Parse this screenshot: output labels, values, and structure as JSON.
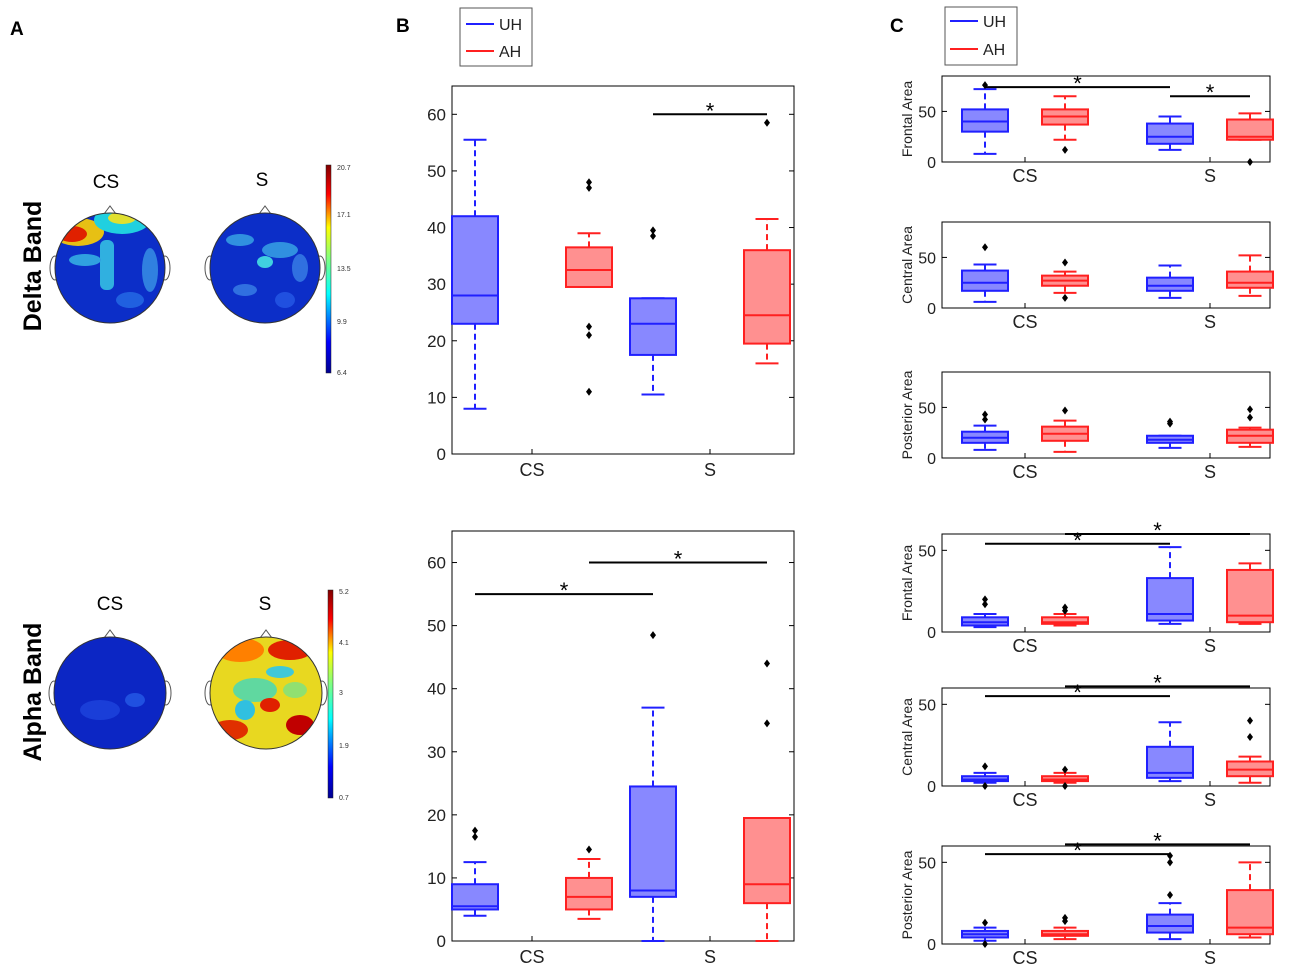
{
  "panels": {
    "a": "A",
    "b": "B",
    "c": "C"
  },
  "bands": {
    "delta": "Delta Band",
    "alpha": "Alpha Band"
  },
  "topo_labels": {
    "cs": "CS",
    "s": "S"
  },
  "colorbars": {
    "delta": [
      "20.7",
      "17.1",
      "13.5",
      "9.9",
      "6.4"
    ],
    "alpha": [
      "5.2",
      "4.1",
      "3",
      "1.9",
      "0.7"
    ]
  },
  "legend": {
    "uh": "UH",
    "ah": "AH"
  },
  "colors": {
    "uh": "#2020ff",
    "uh_fill": "#8888ff",
    "ah": "#ff2020",
    "ah_fill": "#ff9090"
  },
  "significance": "*",
  "chart_data": [
    {
      "id": "delta-overall",
      "type": "boxplot",
      "title": "Delta Band",
      "ylabel": "",
      "categories": [
        "CS",
        "S"
      ],
      "ylim": [
        0,
        65
      ],
      "yticks": [
        0,
        10,
        20,
        30,
        40,
        50,
        60
      ],
      "series": [
        {
          "name": "UH",
          "boxes": [
            {
              "whislo": 8,
              "q1": 23,
              "med": 28,
              "q3": 42,
              "whishi": 55.5,
              "outliers": []
            },
            {
              "whislo": 10.5,
              "q1": 17.5,
              "med": 23,
              "q3": 27.5,
              "whishi": 27.5,
              "outliers": [
                38.5,
                39.5
              ]
            }
          ]
        },
        {
          "name": "AH",
          "boxes": [
            {
              "whislo": 29.5,
              "q1": 29.5,
              "med": 32.5,
              "q3": 36.5,
              "whishi": 39,
              "outliers": [
                11,
                21,
                22.5,
                47,
                48
              ]
            },
            {
              "whislo": 16,
              "q1": 19.5,
              "med": 24.5,
              "q3": 36,
              "whishi": 41.5,
              "outliers": [
                58.5
              ]
            }
          ]
        }
      ],
      "sig": [
        {
          "from": "S-UH",
          "to": "S-AH",
          "y": 60
        }
      ]
    },
    {
      "id": "alpha-overall",
      "type": "boxplot",
      "title": "Alpha Band",
      "ylabel": "",
      "categories": [
        "CS",
        "S"
      ],
      "ylim": [
        0,
        65
      ],
      "yticks": [
        0,
        10,
        20,
        30,
        40,
        50,
        60
      ],
      "series": [
        {
          "name": "UH",
          "boxes": [
            {
              "whislo": 4,
              "q1": 5,
              "med": 5.5,
              "q3": 9,
              "whishi": 12.5,
              "outliers": [
                16.5,
                17.5
              ]
            },
            {
              "whislo": 0,
              "q1": 7,
              "med": 8,
              "q3": 24.5,
              "whishi": 37,
              "outliers": [
                48.5
              ]
            }
          ]
        },
        {
          "name": "AH",
          "boxes": [
            {
              "whislo": 3.5,
              "q1": 5,
              "med": 7,
              "q3": 10,
              "whishi": 13,
              "outliers": [
                14.5
              ]
            },
            {
              "whislo": 0,
              "q1": 6,
              "med": 9,
              "q3": 19.5,
              "whishi": 19.5,
              "outliers": [
                34.5,
                44
              ]
            }
          ]
        }
      ],
      "sig": [
        {
          "from": "CS-UH",
          "to": "S-UH",
          "y": 55
        },
        {
          "from": "CS-AH",
          "to": "S-AH",
          "y": 60
        }
      ]
    },
    {
      "id": "delta-frontal",
      "type": "boxplot",
      "band": "Delta Band",
      "ylabel": "Frontal Area",
      "categories": [
        "CS",
        "S"
      ],
      "ylim": [
        0,
        85
      ],
      "yticks": [
        0,
        50
      ],
      "series": [
        {
          "name": "UH",
          "boxes": [
            {
              "whislo": 8,
              "q1": 30,
              "med": 40,
              "q3": 52,
              "whishi": 72,
              "outliers": [
                76
              ]
            },
            {
              "whislo": 12,
              "q1": 18,
              "med": 25,
              "q3": 38,
              "whishi": 45,
              "outliers": []
            }
          ]
        },
        {
          "name": "AH",
          "boxes": [
            {
              "whislo": 22,
              "q1": 37,
              "med": 45,
              "q3": 52,
              "whishi": 65,
              "outliers": [
                12
              ]
            },
            {
              "whislo": 22,
              "q1": 22,
              "med": 25,
              "q3": 42,
              "whishi": 48,
              "outliers": [
                0
              ]
            }
          ]
        }
      ],
      "sig": [
        {
          "from": "CS-UH",
          "to": "S-UH",
          "y": 74
        },
        {
          "from": "S-UH",
          "to": "S-AH",
          "y": 65
        }
      ]
    },
    {
      "id": "delta-central",
      "type": "boxplot",
      "band": "Delta Band",
      "ylabel": "Central Area",
      "categories": [
        "CS",
        "S"
      ],
      "ylim": [
        0,
        85
      ],
      "yticks": [
        0,
        50
      ],
      "series": [
        {
          "name": "UH",
          "boxes": [
            {
              "whislo": 6,
              "q1": 17,
              "med": 25,
              "q3": 37,
              "whishi": 43,
              "outliers": [
                60
              ]
            },
            {
              "whislo": 10,
              "q1": 17,
              "med": 22,
              "q3": 30,
              "whishi": 42,
              "outliers": []
            }
          ]
        },
        {
          "name": "AH",
          "boxes": [
            {
              "whislo": 15,
              "q1": 22,
              "med": 27,
              "q3": 32,
              "whishi": 36,
              "outliers": [
                10,
                45
              ]
            },
            {
              "whislo": 12,
              "q1": 20,
              "med": 25,
              "q3": 36,
              "whishi": 52,
              "outliers": []
            }
          ]
        }
      ],
      "sig": []
    },
    {
      "id": "delta-posterior",
      "type": "boxplot",
      "band": "Delta Band",
      "ylabel": "Posterior Area",
      "categories": [
        "CS",
        "S"
      ],
      "ylim": [
        0,
        85
      ],
      "yticks": [
        0,
        50
      ],
      "series": [
        {
          "name": "UH",
          "boxes": [
            {
              "whislo": 8,
              "q1": 15,
              "med": 20,
              "q3": 26,
              "whishi": 32,
              "outliers": [
                38,
                43
              ]
            },
            {
              "whislo": 10,
              "q1": 15,
              "med": 18,
              "q3": 22,
              "whishi": 22,
              "outliers": [
                34,
                36
              ]
            }
          ]
        },
        {
          "name": "AH",
          "boxes": [
            {
              "whislo": 6,
              "q1": 17,
              "med": 24,
              "q3": 31,
              "whishi": 37,
              "outliers": [
                47
              ]
            },
            {
              "whislo": 11,
              "q1": 15,
              "med": 22,
              "q3": 28,
              "whishi": 30,
              "outliers": [
                40,
                48
              ]
            }
          ]
        }
      ],
      "sig": []
    },
    {
      "id": "alpha-frontal",
      "type": "boxplot",
      "band": "Alpha Band",
      "ylabel": "Frontal Area",
      "categories": [
        "CS",
        "S"
      ],
      "ylim": [
        0,
        60
      ],
      "yticks": [
        0,
        50
      ],
      "series": [
        {
          "name": "UH",
          "boxes": [
            {
              "whislo": 3,
              "q1": 4,
              "med": 6,
              "q3": 9,
              "whishi": 11,
              "outliers": [
                17,
                20
              ]
            },
            {
              "whislo": 5,
              "q1": 7,
              "med": 11,
              "q3": 33,
              "whishi": 52,
              "outliers": []
            }
          ]
        },
        {
          "name": "AH",
          "boxes": [
            {
              "whislo": 4,
              "q1": 5,
              "med": 6,
              "q3": 9,
              "whishi": 11,
              "outliers": [
                13,
                15
              ]
            },
            {
              "whislo": 5,
              "q1": 6,
              "med": 10,
              "q3": 38,
              "whishi": 42,
              "outliers": []
            }
          ]
        }
      ],
      "sig": [
        {
          "from": "CS-UH",
          "to": "S-UH",
          "y": 54
        },
        {
          "from": "CS-AH",
          "to": "S-AH",
          "y": 60
        }
      ]
    },
    {
      "id": "alpha-central",
      "type": "boxplot",
      "band": "Alpha Band",
      "ylabel": "Central Area",
      "categories": [
        "CS",
        "S"
      ],
      "ylim": [
        0,
        60
      ],
      "yticks": [
        0,
        50
      ],
      "series": [
        {
          "name": "UH",
          "boxes": [
            {
              "whislo": 2,
              "q1": 3,
              "med": 4,
              "q3": 6,
              "whishi": 8,
              "outliers": [
                0,
                12
              ]
            },
            {
              "whislo": 3,
              "q1": 5,
              "med": 8,
              "q3": 24,
              "whishi": 39,
              "outliers": []
            }
          ]
        },
        {
          "name": "AH",
          "boxes": [
            {
              "whislo": 2,
              "q1": 3,
              "med": 4,
              "q3": 6,
              "whishi": 8,
              "outliers": [
                0,
                10
              ]
            },
            {
              "whislo": 2,
              "q1": 6,
              "med": 10,
              "q3": 15,
              "whishi": 18,
              "outliers": [
                30,
                40
              ]
            }
          ]
        }
      ],
      "sig": [
        {
          "from": "CS-UH",
          "to": "S-UH",
          "y": 55
        },
        {
          "from": "CS-AH",
          "to": "S-AH",
          "y": 61
        }
      ]
    },
    {
      "id": "alpha-posterior",
      "type": "boxplot",
      "band": "Alpha Band",
      "ylabel": "Posterior Area",
      "categories": [
        "CS",
        "S"
      ],
      "ylim": [
        0,
        60
      ],
      "yticks": [
        0,
        50
      ],
      "series": [
        {
          "name": "UH",
          "boxes": [
            {
              "whislo": 2,
              "q1": 4,
              "med": 6,
              "q3": 8,
              "whishi": 10,
              "outliers": [
                0,
                13
              ]
            },
            {
              "whislo": 3,
              "q1": 7,
              "med": 11,
              "q3": 18,
              "whishi": 25,
              "outliers": [
                30,
                50,
                54
              ]
            }
          ]
        },
        {
          "name": "AH",
          "boxes": [
            {
              "whislo": 3,
              "q1": 5,
              "med": 6,
              "q3": 8,
              "whishi": 10,
              "outliers": [
                14,
                16
              ]
            },
            {
              "whislo": 4,
              "q1": 6,
              "med": 10,
              "q3": 33,
              "whishi": 50,
              "outliers": []
            }
          ]
        }
      ],
      "sig": [
        {
          "from": "CS-UH",
          "to": "S-UH",
          "y": 55
        },
        {
          "from": "CS-AH",
          "to": "S-AH",
          "y": 61
        }
      ]
    }
  ]
}
